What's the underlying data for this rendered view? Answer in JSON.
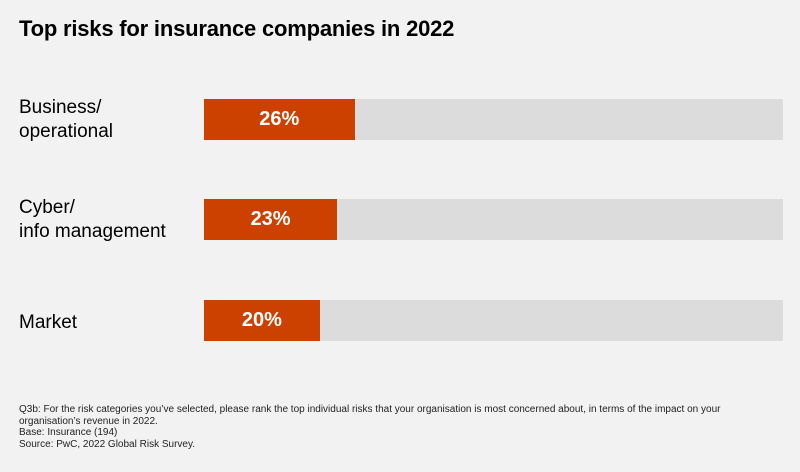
{
  "chart_data": {
    "type": "bar",
    "orientation": "horizontal",
    "title": "Top risks for insurance companies in 2022",
    "categories": [
      [
        "Business/",
        "operational"
      ],
      [
        "Cyber/",
        "info management"
      ],
      [
        "Market"
      ]
    ],
    "values": [
      26,
      23,
      20
    ],
    "value_labels": [
      "26%",
      "23%",
      "20%"
    ],
    "xlim": [
      0,
      100
    ],
    "unit": "%",
    "colors": {
      "bar": "#cc4100",
      "track": "#dcdcdc",
      "background": "#f2f2f2"
    }
  },
  "footnote": {
    "question": "Q3b: For the risk categories you’ve selected, please rank the top individual risks that your organisation is most concerned about, in terms of the impact on your organisation’s revenue in 2022.",
    "base": "Base: Insurance (194)",
    "source": "Source: PwC, 2022 Global Risk Survey."
  }
}
